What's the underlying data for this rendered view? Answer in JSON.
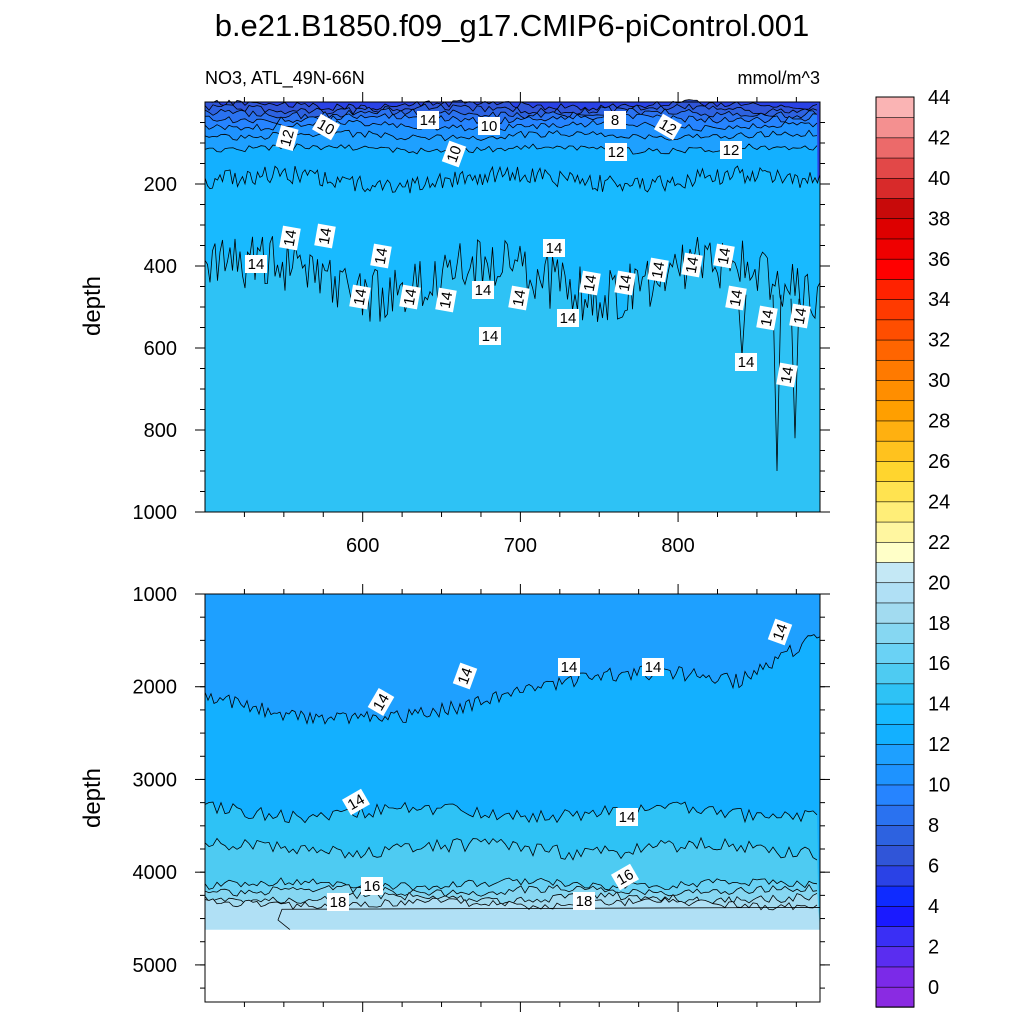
{
  "chart_data": [
    {
      "type": "contour",
      "title": "b.e21.B1850.f09_g17.CMIP6-piControl.001",
      "variable_label": "NO3, ATL_49N-66N",
      "units_label": "mmol/m^3",
      "ylabel": "depth",
      "xlim": [
        500,
        890
      ],
      "ylim": [
        1000,
        0
      ],
      "xticks": [
        "600",
        "700",
        "800"
      ],
      "yticks": [
        "200",
        "400",
        "600",
        "800",
        "1000"
      ],
      "contour_labels": [
        "8",
        "10",
        "12",
        "10",
        "8",
        "12",
        "10",
        "12",
        "12",
        "14",
        "14",
        "14",
        "14",
        "14",
        "14",
        "14",
        "14",
        "14",
        "14",
        "14",
        "14",
        "14",
        "14",
        "14",
        "14",
        "14",
        "14",
        "14",
        "14",
        "14",
        "14",
        "14"
      ],
      "mean_contours": [
        {
          "level": 6,
          "depth": 8
        },
        {
          "level": 7,
          "depth": 18
        },
        {
          "level": 8,
          "depth": 28
        },
        {
          "level": 9,
          "depth": 40
        },
        {
          "level": 10,
          "depth": 58
        },
        {
          "level": 11,
          "depth": 82
        },
        {
          "level": 12,
          "depth": 115
        },
        {
          "level": 13,
          "depth": 190
        },
        {
          "level": 14,
          "depth": 430
        }
      ]
    },
    {
      "type": "contour",
      "ylabel": "depth",
      "xlim": [
        500,
        890
      ],
      "ylim": [
        5400,
        1000
      ],
      "yticks": [
        "1000",
        "2000",
        "3000",
        "4000",
        "5000"
      ],
      "seafloor_depth": 4620,
      "contour_labels": [
        "14",
        "14",
        "14",
        "14",
        "14",
        "14",
        "14",
        "16",
        "16",
        "18",
        "18"
      ],
      "mean_contours": [
        {
          "level": 14,
          "depth": 2100
        },
        {
          "level": 14,
          "depth": 3350
        },
        {
          "level": 15,
          "depth": 3750
        },
        {
          "level": 16,
          "depth": 4130
        },
        {
          "level": 17,
          "depth": 4200
        },
        {
          "level": 18,
          "depth": 4280
        },
        {
          "level": 19,
          "depth": 4340
        }
      ]
    }
  ],
  "colorbar": {
    "labels": [
      "0",
      "2",
      "4",
      "6",
      "8",
      "10",
      "12",
      "14",
      "16",
      "18",
      "20",
      "22",
      "24",
      "26",
      "28",
      "30",
      "32",
      "34",
      "36",
      "38",
      "40",
      "42",
      "44"
    ],
    "colors": [
      "#8a2be2",
      "#7b2ae8",
      "#5a2df0",
      "#3a2ff5",
      "#1a1aff",
      "#0f2bff",
      "#2a42e6",
      "#3055d8",
      "#2d62e0",
      "#2a72f0",
      "#2684ff",
      "#1e93ff",
      "#1ea0ff",
      "#13b0ff",
      "#18baff",
      "#2ec2f5",
      "#4ecbf2",
      "#6ad2f5",
      "#86d7f2",
      "#a2dbf0",
      "#b0e0f5",
      "#c4e8f5",
      "#ffffc8",
      "#fff6a0",
      "#ffee78",
      "#ffe350",
      "#ffd52e",
      "#ffc21e",
      "#ffb010",
      "#ff9f00",
      "#ff8e00",
      "#ff7a00",
      "#ff6500",
      "#ff4e00",
      "#ff3a00",
      "#ff2200",
      "#ff0000",
      "#ef0000",
      "#dd0000",
      "#c80a0a",
      "#d82a2a",
      "#e24848",
      "#ec6a6a",
      "#f49090",
      "#fab4b4"
    ]
  }
}
